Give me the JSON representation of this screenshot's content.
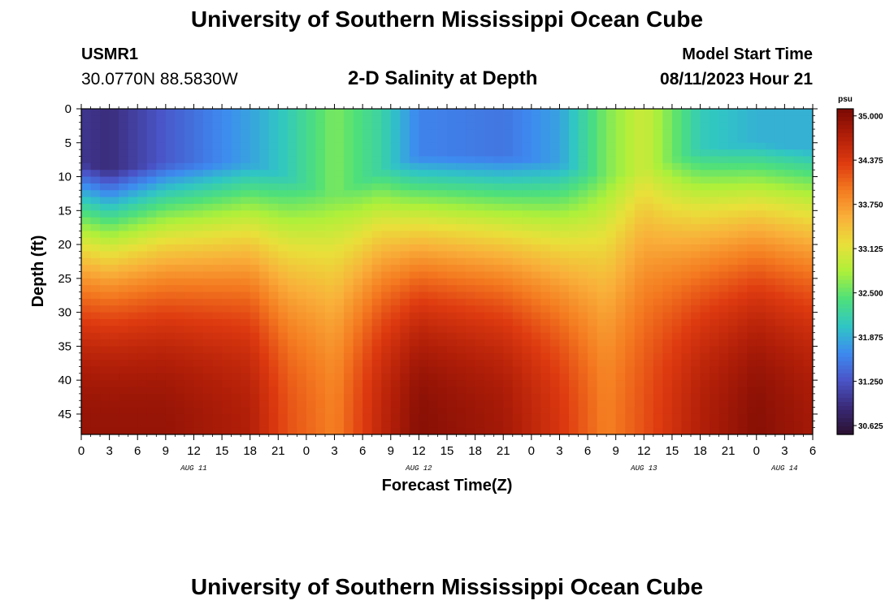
{
  "header": {
    "title": "University of Southern Mississippi Ocean Cube",
    "station_id": "USMR1",
    "coordinates": "30.0770N  88.5830W",
    "subtitle": "2-D Salinity at Depth",
    "model_start_label": "Model Start Time",
    "model_start_value": "08/11/2023 Hour 21",
    "footer_title": "University of Southern Mississippi Ocean Cube"
  },
  "chart_data": {
    "type": "heatmap",
    "title": "2-D Salinity at Depth",
    "xlabel": "Forecast Time(Z)",
    "ylabel": "Depth (ft)",
    "x_start_hour": 0,
    "x_end_hour": 78,
    "x_tick_labels": [
      "0",
      "3",
      "6",
      "9",
      "12",
      "15",
      "18",
      "21",
      "0",
      "3",
      "6",
      "9",
      "12",
      "15",
      "18",
      "21",
      "0",
      "3",
      "6",
      "9",
      "12",
      "15",
      "18",
      "21",
      "0",
      "3",
      "6"
    ],
    "day_labels": [
      {
        "label": "AUG 11",
        "hour": 12
      },
      {
        "label": "AUG 12",
        "hour": 36
      },
      {
        "label": "AUG 13",
        "hour": 60
      },
      {
        "label": "AUG 14",
        "hour": 75
      }
    ],
    "ylim": [
      0,
      48
    ],
    "y_ticks": [
      0,
      5,
      10,
      15,
      20,
      25,
      30,
      35,
      40,
      45
    ],
    "colorbar": {
      "unit": "psu",
      "min": 30.5,
      "max": 35.1,
      "ticks": [
        "35.000",
        "34.375",
        "33.750",
        "33.125",
        "32.500",
        "31.875",
        "31.250",
        "30.625"
      ],
      "colors": [
        "#2a1030",
        "#3a2a78",
        "#4a55c8",
        "#3d8bf0",
        "#30c6c4",
        "#4fe07a",
        "#aef03a",
        "#e9e03a",
        "#f9b03a",
        "#f47a20",
        "#de3a10",
        "#b01e08",
        "#7a0a04"
      ]
    },
    "depth_profiles": [
      {
        "hour": 0,
        "surface": 31.0,
        "bottom": 34.9,
        "thermocline_ft": 13
      },
      {
        "hour": 3,
        "surface": 30.9,
        "bottom": 34.9,
        "thermocline_ft": 14
      },
      {
        "hour": 9,
        "surface": 31.3,
        "bottom": 34.9,
        "thermocline_ft": 13
      },
      {
        "hour": 18,
        "surface": 31.8,
        "bottom": 34.7,
        "thermocline_ft": 13
      },
      {
        "hour": 22,
        "surface": 32.1,
        "bottom": 34.2,
        "thermocline_ft": 15
      },
      {
        "hour": 27,
        "surface": 32.6,
        "bottom": 33.9,
        "thermocline_ft": 18
      },
      {
        "hour": 32,
        "surface": 32.2,
        "bottom": 34.6,
        "thermocline_ft": 14
      },
      {
        "hour": 36,
        "surface": 31.6,
        "bottom": 35.0,
        "thermocline_ft": 12
      },
      {
        "hour": 45,
        "surface": 31.5,
        "bottom": 34.8,
        "thermocline_ft": 12
      },
      {
        "hour": 51,
        "surface": 31.8,
        "bottom": 34.4,
        "thermocline_ft": 13
      },
      {
        "hour": 56,
        "surface": 32.6,
        "bottom": 33.9,
        "thermocline_ft": 15
      },
      {
        "hour": 60,
        "surface": 33.0,
        "bottom": 34.2,
        "thermocline_ft": 14
      },
      {
        "hour": 66,
        "surface": 32.1,
        "bottom": 34.7,
        "thermocline_ft": 11
      },
      {
        "hour": 72,
        "surface": 31.9,
        "bottom": 35.0,
        "thermocline_ft": 10
      },
      {
        "hour": 78,
        "surface": 31.9,
        "bottom": 34.8,
        "thermocline_ft": 11
      }
    ]
  }
}
